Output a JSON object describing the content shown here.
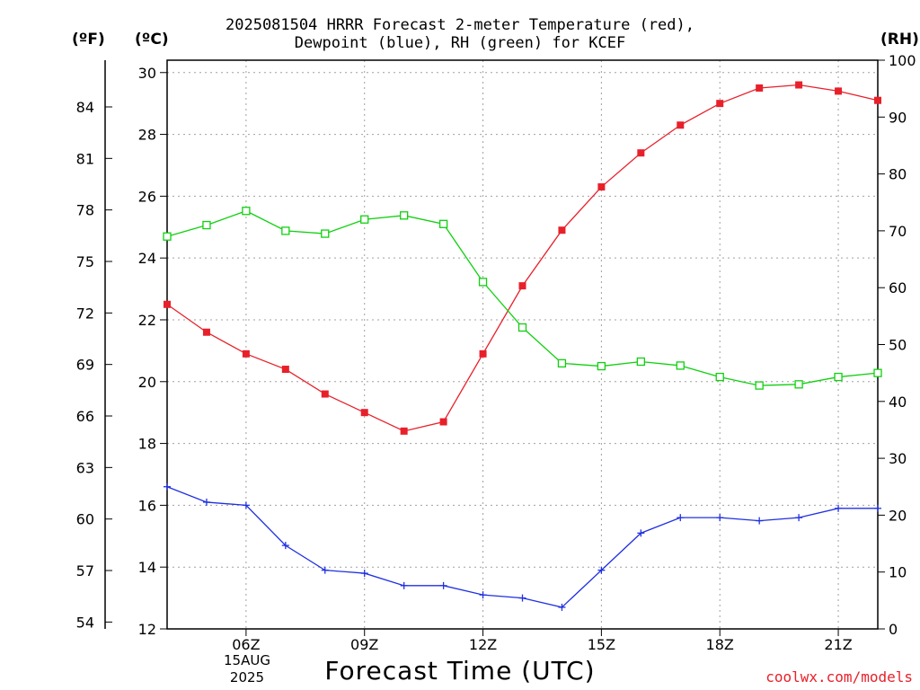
{
  "title": {
    "line1": "2025081504 HRRR Forecast 2-meter Temperature (red),",
    "line2": "Dewpoint (blue), RH (green) for KCEF"
  },
  "units": {
    "fahrenheit": "(ºF)",
    "celsius": "(ºC)",
    "rh": "(RH)"
  },
  "xaxis_label": "Forecast Time (UTC)",
  "date_label": {
    "day": "15AUG",
    "year": "2025"
  },
  "credit": "coolwx.com/models",
  "colors": {
    "temperature": "#e8202a",
    "dewpoint": "#2030e0",
    "rh": "#10d010",
    "grid": "#a0a0a0"
  },
  "chart_data": {
    "type": "line",
    "x": [
      4,
      5,
      6,
      7,
      8,
      9,
      10,
      11,
      12,
      13,
      14,
      15,
      16,
      17,
      18,
      19,
      20,
      21,
      22
    ],
    "xlim": [
      4,
      22
    ],
    "xticks": [
      6,
      9,
      12,
      15,
      18,
      21
    ],
    "xtick_labels": [
      "06Z",
      "09Z",
      "12Z",
      "15Z",
      "18Z",
      "21Z"
    ],
    "ylim_c": [
      12,
      30.4
    ],
    "yticks_c": [
      12,
      14,
      16,
      18,
      20,
      22,
      24,
      26,
      28,
      30
    ],
    "ylim_rh": [
      0,
      100
    ],
    "yticks_rh": [
      0,
      10,
      20,
      30,
      40,
      50,
      60,
      70,
      80,
      90,
      100
    ],
    "yticks_f": [
      54,
      57,
      60,
      63,
      66,
      69,
      72,
      75,
      78,
      81,
      84
    ],
    "grid": true,
    "series": [
      {
        "name": "Temperature",
        "axis": "celsius",
        "marker": "filled-square",
        "values": [
          22.5,
          21.6,
          20.9,
          20.4,
          19.6,
          19.0,
          18.4,
          18.7,
          20.9,
          23.1,
          24.9,
          26.3,
          27.4,
          28.3,
          29.0,
          29.5,
          29.6,
          29.4,
          29.1
        ]
      },
      {
        "name": "Dewpoint",
        "axis": "celsius",
        "marker": "plus",
        "values": [
          16.6,
          16.1,
          16.0,
          14.7,
          13.9,
          13.8,
          13.4,
          13.4,
          13.1,
          13.0,
          12.7,
          13.9,
          15.1,
          15.6,
          15.6,
          15.5,
          15.6,
          15.9,
          15.9
        ]
      },
      {
        "name": "RH",
        "axis": "rh",
        "marker": "open-square",
        "values": [
          69,
          71,
          73.5,
          70,
          69.5,
          72,
          72.7,
          71.2,
          61,
          53,
          46.7,
          46.2,
          47,
          46.3,
          44.3,
          42.8,
          43,
          44.3,
          45
        ]
      }
    ]
  }
}
